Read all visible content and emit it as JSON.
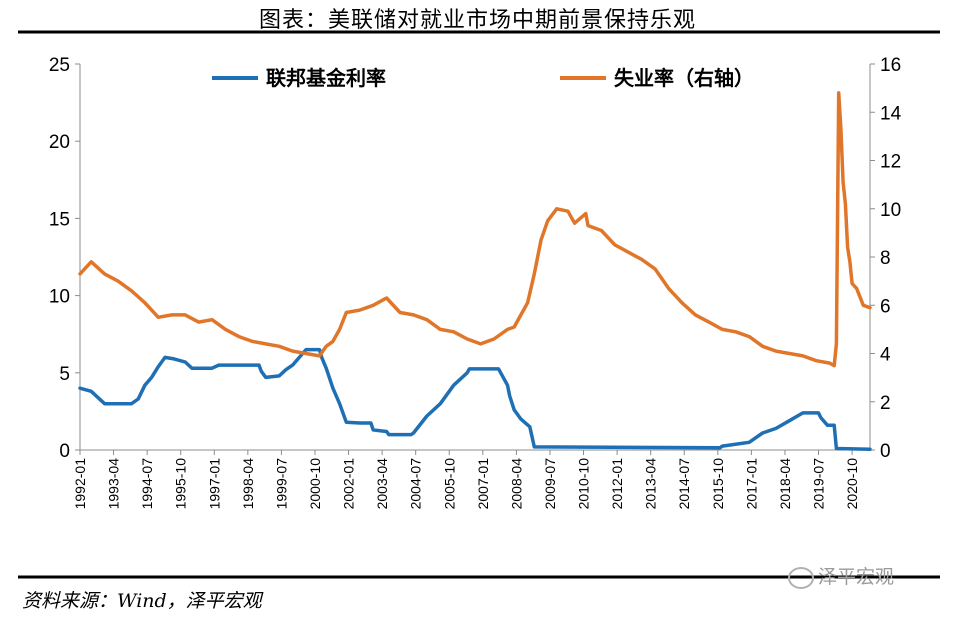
{
  "title": "图表：美联储对就业市场中期前景保持乐观",
  "source": "资料来源：Wind，泽平宏观",
  "watermark": "泽平宏观",
  "chart_data": {
    "type": "line",
    "x_start": "1992-01",
    "x_end": "2021-06",
    "x_ticks": [
      "1992-01",
      "1993-04",
      "1994-07",
      "1995-10",
      "1997-01",
      "1998-04",
      "1999-07",
      "2000-10",
      "2002-01",
      "2003-04",
      "2004-07",
      "2005-10",
      "2007-01",
      "2008-04",
      "2009-07",
      "2010-10",
      "2012-01",
      "2013-04",
      "2014-07",
      "2015-10",
      "2017-01",
      "2018-04",
      "2019-07",
      "2020-10"
    ],
    "y_left": {
      "range": [
        0,
        25
      ],
      "ticks": [
        "0",
        "5",
        "10",
        "15",
        "20",
        "25"
      ]
    },
    "y_right": {
      "range": [
        0,
        16
      ],
      "ticks": [
        "0",
        "2",
        "4",
        "6",
        "8",
        "10",
        "12",
        "14",
        "16"
      ]
    },
    "legend_position": "top",
    "series": [
      {
        "name": "联邦基金利率",
        "axis": "left",
        "color": "#1F6FB4",
        "points": [
          [
            "1992-01",
            4.0
          ],
          [
            "1992-06",
            3.8
          ],
          [
            "1992-12",
            3.0
          ],
          [
            "1993-06",
            3.0
          ],
          [
            "1993-12",
            3.0
          ],
          [
            "1994-03",
            3.3
          ],
          [
            "1994-06",
            4.2
          ],
          [
            "1994-09",
            4.7
          ],
          [
            "1994-12",
            5.4
          ],
          [
            "1995-03",
            6.0
          ],
          [
            "1995-07",
            5.9
          ],
          [
            "1995-12",
            5.7
          ],
          [
            "1996-03",
            5.3
          ],
          [
            "1996-12",
            5.3
          ],
          [
            "1997-03",
            5.5
          ],
          [
            "1997-12",
            5.5
          ],
          [
            "1998-09",
            5.5
          ],
          [
            "1998-10",
            5.1
          ],
          [
            "1998-12",
            4.7
          ],
          [
            "1999-06",
            4.8
          ],
          [
            "1999-09",
            5.2
          ],
          [
            "1999-12",
            5.5
          ],
          [
            "2000-03",
            6.0
          ],
          [
            "2000-06",
            6.5
          ],
          [
            "2000-12",
            6.5
          ],
          [
            "2001-01",
            6.0
          ],
          [
            "2001-03",
            5.3
          ],
          [
            "2001-06",
            4.0
          ],
          [
            "2001-09",
            3.0
          ],
          [
            "2001-12",
            1.8
          ],
          [
            "2002-06",
            1.75
          ],
          [
            "2002-11",
            1.75
          ],
          [
            "2002-12",
            1.3
          ],
          [
            "2003-06",
            1.2
          ],
          [
            "2003-07",
            1.0
          ],
          [
            "2004-05",
            1.0
          ],
          [
            "2004-06",
            1.1
          ],
          [
            "2004-12",
            2.2
          ],
          [
            "2005-06",
            3.0
          ],
          [
            "2005-12",
            4.2
          ],
          [
            "2006-06",
            5.0
          ],
          [
            "2006-07",
            5.25
          ],
          [
            "2007-08",
            5.25
          ],
          [
            "2007-09",
            5.0
          ],
          [
            "2007-12",
            4.2
          ],
          [
            "2008-01",
            3.5
          ],
          [
            "2008-03",
            2.6
          ],
          [
            "2008-06",
            2.0
          ],
          [
            "2008-10",
            1.5
          ],
          [
            "2008-12",
            0.2
          ],
          [
            "2015-11",
            0.15
          ],
          [
            "2015-12",
            0.25
          ],
          [
            "2016-12",
            0.5
          ],
          [
            "2017-06",
            1.1
          ],
          [
            "2017-12",
            1.4
          ],
          [
            "2018-06",
            1.9
          ],
          [
            "2018-12",
            2.4
          ],
          [
            "2019-07",
            2.4
          ],
          [
            "2019-08",
            2.1
          ],
          [
            "2019-11",
            1.6
          ],
          [
            "2020-02",
            1.6
          ],
          [
            "2020-03",
            0.1
          ],
          [
            "2021-06",
            0.05
          ]
        ]
      },
      {
        "name": "失业率（右轴）",
        "axis": "right",
        "color": "#E0762A",
        "points": [
          [
            "1992-01",
            7.3
          ],
          [
            "1992-06",
            7.8
          ],
          [
            "1992-12",
            7.3
          ],
          [
            "1993-06",
            7.0
          ],
          [
            "1993-12",
            6.6
          ],
          [
            "1994-06",
            6.1
          ],
          [
            "1994-12",
            5.5
          ],
          [
            "1995-06",
            5.6
          ],
          [
            "1995-12",
            5.6
          ],
          [
            "1996-06",
            5.3
          ],
          [
            "1996-12",
            5.4
          ],
          [
            "1997-06",
            5.0
          ],
          [
            "1997-12",
            4.7
          ],
          [
            "1998-06",
            4.5
          ],
          [
            "1998-12",
            4.4
          ],
          [
            "1999-06",
            4.3
          ],
          [
            "1999-12",
            4.1
          ],
          [
            "2000-06",
            4.0
          ],
          [
            "2000-12",
            3.9
          ],
          [
            "2001-03",
            4.3
          ],
          [
            "2001-06",
            4.5
          ],
          [
            "2001-09",
            5.0
          ],
          [
            "2001-12",
            5.7
          ],
          [
            "2002-06",
            5.8
          ],
          [
            "2002-12",
            6.0
          ],
          [
            "2003-06",
            6.3
          ],
          [
            "2003-12",
            5.7
          ],
          [
            "2004-06",
            5.6
          ],
          [
            "2004-12",
            5.4
          ],
          [
            "2005-06",
            5.0
          ],
          [
            "2005-12",
            4.9
          ],
          [
            "2006-06",
            4.6
          ],
          [
            "2006-12",
            4.4
          ],
          [
            "2007-06",
            4.6
          ],
          [
            "2007-12",
            5.0
          ],
          [
            "2008-03",
            5.1
          ],
          [
            "2008-06",
            5.6
          ],
          [
            "2008-09",
            6.1
          ],
          [
            "2008-12",
            7.3
          ],
          [
            "2009-03",
            8.7
          ],
          [
            "2009-06",
            9.5
          ],
          [
            "2009-10",
            10.0
          ],
          [
            "2010-03",
            9.9
          ],
          [
            "2010-06",
            9.4
          ],
          [
            "2010-11",
            9.8
          ],
          [
            "2010-12",
            9.3
          ],
          [
            "2011-06",
            9.1
          ],
          [
            "2011-12",
            8.5
          ],
          [
            "2012-06",
            8.2
          ],
          [
            "2012-12",
            7.9
          ],
          [
            "2013-06",
            7.5
          ],
          [
            "2013-12",
            6.7
          ],
          [
            "2014-06",
            6.1
          ],
          [
            "2014-12",
            5.6
          ],
          [
            "2015-06",
            5.3
          ],
          [
            "2015-12",
            5.0
          ],
          [
            "2016-06",
            4.9
          ],
          [
            "2016-12",
            4.7
          ],
          [
            "2017-06",
            4.3
          ],
          [
            "2017-12",
            4.1
          ],
          [
            "2018-06",
            4.0
          ],
          [
            "2018-12",
            3.9
          ],
          [
            "2019-06",
            3.7
          ],
          [
            "2019-12",
            3.6
          ],
          [
            "2020-02",
            3.5
          ],
          [
            "2020-03",
            4.4
          ],
          [
            "2020-04",
            14.8
          ],
          [
            "2020-05",
            13.3
          ],
          [
            "2020-06",
            11.1
          ],
          [
            "2020-07",
            10.2
          ],
          [
            "2020-08",
            8.4
          ],
          [
            "2020-09",
            7.8
          ],
          [
            "2020-10",
            6.9
          ],
          [
            "2020-12",
            6.7
          ],
          [
            "2021-03",
            6.0
          ],
          [
            "2021-06",
            5.9
          ]
        ]
      }
    ]
  }
}
